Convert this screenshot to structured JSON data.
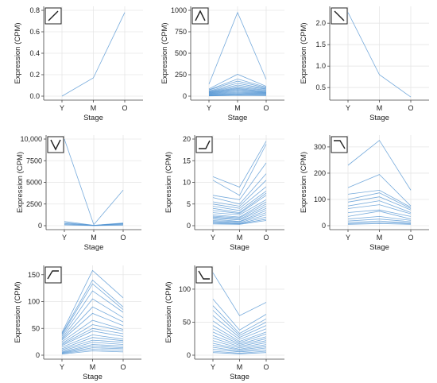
{
  "chart_data": [
    {
      "type": "line",
      "icon": "rising-trend-icon",
      "categories": [
        "Y",
        "M",
        "O"
      ],
      "xlabel": "Stage",
      "ylabel": "Expression (CPM)",
      "ylim": [
        0,
        0.8
      ],
      "yticks": [
        0.0,
        0.2,
        0.4,
        0.6,
        0.8
      ],
      "ytick_labels": [
        "0.0",
        "0.2",
        "0.4",
        "0.6",
        "0.8"
      ],
      "color": "#4a8fd0",
      "grid": true,
      "series": [
        {
          "values": [
            0.0,
            0.17,
            0.78
          ]
        }
      ]
    },
    {
      "type": "line",
      "icon": "peak-at-m-icon",
      "categories": [
        "Y",
        "M",
        "O"
      ],
      "xlabel": "Stage",
      "ylabel": "Expression (CPM)",
      "ylim": [
        0,
        1000
      ],
      "yticks": [
        0,
        250,
        500,
        750,
        1000
      ],
      "ytick_labels": [
        "0",
        "250",
        "500",
        "750",
        "1000"
      ],
      "color": "#4a8fd0",
      "grid": true,
      "series": [
        {
          "values": [
            140,
            975,
            195
          ]
        },
        {
          "values": [
            85,
            255,
            115
          ]
        },
        {
          "values": [
            75,
            200,
            105
          ]
        },
        {
          "values": [
            70,
            175,
            95
          ]
        },
        {
          "values": [
            60,
            150,
            85
          ]
        },
        {
          "values": [
            55,
            130,
            80
          ]
        },
        {
          "values": [
            50,
            115,
            70
          ]
        },
        {
          "values": [
            45,
            100,
            65
          ]
        },
        {
          "values": [
            40,
            90,
            55
          ]
        },
        {
          "values": [
            35,
            80,
            50
          ]
        },
        {
          "values": [
            30,
            70,
            45
          ]
        },
        {
          "values": [
            25,
            60,
            40
          ]
        },
        {
          "values": [
            20,
            50,
            35
          ]
        },
        {
          "values": [
            15,
            40,
            30
          ]
        },
        {
          "values": [
            10,
            30,
            25
          ]
        },
        {
          "values": [
            8,
            22,
            18
          ]
        },
        {
          "values": [
            5,
            15,
            12
          ]
        },
        {
          "values": [
            3,
            8,
            6
          ]
        }
      ]
    },
    {
      "type": "line",
      "icon": "falling-trend-icon",
      "categories": [
        "Y",
        "M",
        "O"
      ],
      "xlabel": "Stage",
      "ylabel": "Expression (CPM)",
      "ylim": [
        0.3,
        2.3
      ],
      "yticks": [
        0.5,
        1.0,
        1.5,
        2.0
      ],
      "ytick_labels": [
        "0.5",
        "1.0",
        "1.5",
        "2.0"
      ],
      "color": "#4a8fd0",
      "grid": true,
      "series": [
        {
          "values": [
            2.25,
            0.8,
            0.28
          ]
        }
      ]
    },
    {
      "type": "line",
      "icon": "dip-at-m-icon",
      "categories": [
        "Y",
        "M",
        "O"
      ],
      "xlabel": "Stage",
      "ylabel": "Expression (CPM)",
      "ylim": [
        0,
        10000
      ],
      "yticks": [
        0,
        2500,
        5000,
        7500,
        10000
      ],
      "ytick_labels": [
        "0",
        "2500",
        "5000",
        "7500",
        "10,000"
      ],
      "color": "#4a8fd0",
      "grid": true,
      "series": [
        {
          "values": [
            10000,
            120,
            4100
          ]
        },
        {
          "values": [
            500,
            50,
            300
          ]
        },
        {
          "values": [
            350,
            40,
            250
          ]
        },
        {
          "values": [
            250,
            30,
            200
          ]
        },
        {
          "values": [
            150,
            20,
            120
          ]
        },
        {
          "values": [
            80,
            10,
            60
          ]
        }
      ]
    },
    {
      "type": "line",
      "icon": "late-rise-icon",
      "categories": [
        "Y",
        "M",
        "O"
      ],
      "xlabel": "Stage",
      "ylabel": "Expression (CPM)",
      "ylim": [
        0,
        20
      ],
      "yticks": [
        0,
        5,
        10,
        15,
        20
      ],
      "ytick_labels": [
        "0",
        "5",
        "10",
        "15",
        "20"
      ],
      "color": "#4a8fd0",
      "grid": true,
      "series": [
        {
          "values": [
            11.3,
            8.9,
            19.5
          ]
        },
        {
          "values": [
            10.5,
            7.0,
            18.8
          ]
        },
        {
          "values": [
            7.0,
            6.0,
            14.5
          ]
        },
        {
          "values": [
            6.5,
            5.0,
            12.0
          ]
        },
        {
          "values": [
            5.5,
            4.5,
            10.5
          ]
        },
        {
          "values": [
            5.0,
            4.0,
            9.0
          ]
        },
        {
          "values": [
            4.5,
            3.5,
            8.0
          ]
        },
        {
          "values": [
            4.0,
            3.0,
            7.5
          ]
        },
        {
          "values": [
            3.5,
            2.8,
            7.0
          ]
        },
        {
          "values": [
            3.0,
            2.5,
            6.0
          ]
        },
        {
          "values": [
            2.5,
            2.0,
            5.5
          ]
        },
        {
          "values": [
            2.2,
            1.8,
            5.0
          ]
        },
        {
          "values": [
            2.0,
            1.5,
            4.5
          ]
        },
        {
          "values": [
            1.8,
            1.3,
            4.0
          ]
        },
        {
          "values": [
            1.5,
            1.0,
            3.5
          ]
        },
        {
          "values": [
            1.2,
            0.9,
            3.0
          ]
        },
        {
          "values": [
            1.0,
            0.7,
            2.5
          ]
        },
        {
          "values": [
            0.8,
            0.5,
            2.0
          ]
        },
        {
          "values": [
            0.6,
            0.4,
            1.5
          ]
        },
        {
          "values": [
            0.4,
            0.3,
            1.2
          ]
        }
      ]
    },
    {
      "type": "line",
      "icon": "early-plateau-then-fall-icon",
      "categories": [
        "Y",
        "M",
        "O"
      ],
      "xlabel": "Stage",
      "ylabel": "Expression (CPM)",
      "ylim": [
        0,
        330
      ],
      "yticks": [
        0,
        100,
        200,
        300
      ],
      "ytick_labels": [
        "0",
        "100",
        "200",
        "300"
      ],
      "color": "#4a8fd0",
      "grid": true,
      "series": [
        {
          "values": [
            230,
            325,
            135
          ]
        },
        {
          "values": [
            145,
            195,
            75
          ]
        },
        {
          "values": [
            120,
            135,
            70
          ]
        },
        {
          "values": [
            100,
            125,
            65
          ]
        },
        {
          "values": [
            90,
            110,
            60
          ]
        },
        {
          "values": [
            75,
            95,
            50
          ]
        },
        {
          "values": [
            65,
            80,
            45
          ]
        },
        {
          "values": [
            50,
            60,
            35
          ]
        },
        {
          "values": [
            35,
            55,
            25
          ]
        },
        {
          "values": [
            25,
            35,
            20
          ]
        },
        {
          "values": [
            18,
            25,
            15
          ]
        },
        {
          "values": [
            12,
            18,
            10
          ]
        },
        {
          "values": [
            8,
            12,
            8
          ]
        },
        {
          "values": [
            5,
            8,
            5
          ]
        }
      ]
    },
    {
      "type": "line",
      "icon": "early-rise-then-plateau-icon",
      "categories": [
        "Y",
        "M",
        "O"
      ],
      "xlabel": "Stage",
      "ylabel": "Expression (CPM)",
      "ylim": [
        0,
        160
      ],
      "yticks": [
        0,
        50,
        100,
        150
      ],
      "ytick_labels": [
        "0",
        "50",
        "100",
        "150"
      ],
      "color": "#4a8fd0",
      "grid": true,
      "series": [
        {
          "values": [
            42,
            158,
            107
          ]
        },
        {
          "values": [
            40,
            140,
            90
          ]
        },
        {
          "values": [
            38,
            133,
            85
          ]
        },
        {
          "values": [
            35,
            120,
            80
          ]
        },
        {
          "values": [
            32,
            105,
            70
          ]
        },
        {
          "values": [
            30,
            90,
            62
          ]
        },
        {
          "values": [
            28,
            78,
            55
          ]
        },
        {
          "values": [
            25,
            65,
            48
          ]
        },
        {
          "values": [
            22,
            57,
            45
          ]
        },
        {
          "values": [
            20,
            50,
            40
          ]
        },
        {
          "values": [
            18,
            45,
            35
          ]
        },
        {
          "values": [
            15,
            38,
            30
          ]
        },
        {
          "values": [
            12,
            33,
            27
          ]
        },
        {
          "values": [
            10,
            28,
            24
          ]
        },
        {
          "values": [
            8,
            24,
            20
          ]
        },
        {
          "values": [
            6,
            20,
            17
          ]
        },
        {
          "values": [
            5,
            17,
            14
          ]
        },
        {
          "values": [
            4,
            14,
            12
          ]
        },
        {
          "values": [
            3,
            11,
            9
          ]
        },
        {
          "values": [
            2,
            8,
            6
          ]
        }
      ]
    },
    {
      "type": "line",
      "icon": "early-fall-then-plateau-icon",
      "categories": [
        "Y",
        "M",
        "O"
      ],
      "xlabel": "Stage",
      "ylabel": "Expression (CPM)",
      "ylim": [
        0,
        130
      ],
      "yticks": [
        0,
        50,
        100
      ],
      "ytick_labels": [
        "0",
        "50",
        "100"
      ],
      "color": "#4a8fd0",
      "grid": true,
      "series": [
        {
          "values": [
            125,
            60,
            80
          ]
        },
        {
          "values": [
            85,
            38,
            62
          ]
        },
        {
          "values": [
            75,
            33,
            55
          ]
        },
        {
          "values": [
            68,
            30,
            50
          ]
        },
        {
          "values": [
            60,
            27,
            45
          ]
        },
        {
          "values": [
            52,
            24,
            40
          ]
        },
        {
          "values": [
            45,
            21,
            35
          ]
        },
        {
          "values": [
            40,
            19,
            32
          ]
        },
        {
          "values": [
            35,
            17,
            28
          ]
        },
        {
          "values": [
            30,
            15,
            25
          ]
        },
        {
          "values": [
            26,
            13,
            22
          ]
        },
        {
          "values": [
            22,
            11,
            19
          ]
        },
        {
          "values": [
            18,
            9,
            16
          ]
        },
        {
          "values": [
            15,
            8,
            13
          ]
        },
        {
          "values": [
            12,
            6,
            11
          ]
        },
        {
          "values": [
            9,
            5,
            8
          ]
        },
        {
          "values": [
            6,
            3,
            6
          ]
        },
        {
          "values": [
            4,
            2,
            4
          ]
        }
      ]
    }
  ]
}
